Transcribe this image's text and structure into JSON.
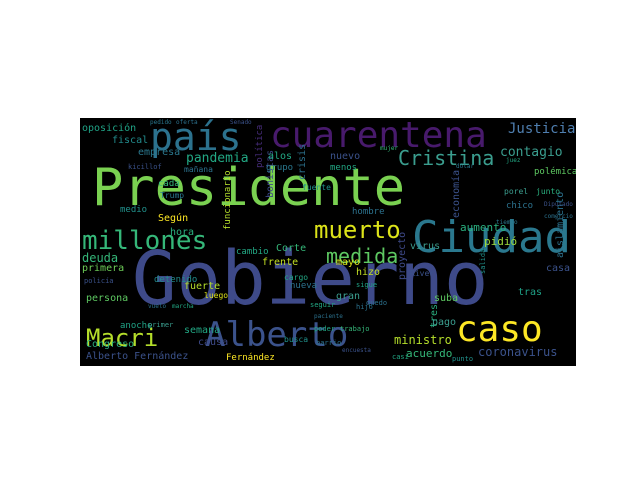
{
  "wordcloud": {
    "words": [
      {
        "text": "Presidente",
        "color": "#7ad151"
      },
      {
        "text": "Gobierno",
        "color": "#3e4a89"
      },
      {
        "text": "cuarentena",
        "color": "#481a6c"
      },
      {
        "text": "país",
        "color": "#2c728e"
      },
      {
        "text": "Alberto",
        "color": "#3b528b"
      },
      {
        "text": "Ciudad",
        "color": "#2a788e"
      },
      {
        "text": "caso",
        "color": "#fde725"
      },
      {
        "text": "Macri",
        "color": "#b5de2b"
      },
      {
        "text": "millones",
        "color": "#35b779"
      },
      {
        "text": "muerto",
        "color": "#dce319"
      },
      {
        "text": "medida",
        "color": "#5ec962"
      },
      {
        "text": "Cristina",
        "color": "#3b9e8f"
      },
      {
        "text": "Justicia",
        "color": "#4f7fb0"
      },
      {
        "text": "contagio",
        "color": "#3b9e8f"
      },
      {
        "text": "oposición",
        "color": "#20a386"
      },
      {
        "text": "empresa",
        "color": "#2a788e"
      },
      {
        "text": "fiscal",
        "color": "#228c8d"
      },
      {
        "text": "pandemia",
        "color": "#22a884"
      },
      {
        "text": "aumento",
        "color": "#2ab07f"
      },
      {
        "text": "pidió",
        "color": "#9fda3a"
      },
      {
        "text": "deuda",
        "color": "#35b779"
      },
      {
        "text": "primera",
        "color": "#6ece58"
      },
      {
        "text": "persona",
        "color": "#5ec962"
      },
      {
        "text": "Congreso",
        "color": "#2ab07f"
      },
      {
        "text": "Alberto Fernández",
        "color": "#3b528b"
      },
      {
        "text": "coronavirus",
        "color": "#3b528b"
      },
      {
        "text": "ministro",
        "color": "#b5de2b"
      },
      {
        "text": "acuerdo",
        "color": "#35b779"
      },
      {
        "text": "aislamiento",
        "color": "#2c728e"
      },
      {
        "text": "semana",
        "color": "#22a884"
      },
      {
        "text": "causa",
        "color": "#3e4a89"
      },
      {
        "text": "anoche",
        "color": "#20a386"
      },
      {
        "text": "hora",
        "color": "#2ab07f"
      },
      {
        "text": "Según",
        "color": "#fde725"
      },
      {
        "text": "funcionario",
        "color": "#b5de2b"
      },
      {
        "text": "medio",
        "color": "#21918c"
      },
      {
        "text": "frente",
        "color": "#c2df23"
      },
      {
        "text": "fuerte",
        "color": "#b5de2b"
      },
      {
        "text": "detenido",
        "color": "#228c8d"
      },
      {
        "text": "cambio",
        "color": "#22a884"
      },
      {
        "text": "Corte",
        "color": "#35b779"
      },
      {
        "text": "crisis",
        "color": "#2c728e"
      },
      {
        "text": "bonistas",
        "color": "#3e4a89"
      },
      {
        "text": "política",
        "color": "#472d7b"
      },
      {
        "text": "alos",
        "color": "#22a884"
      },
      {
        "text": "nuevo",
        "color": "#3b528b"
      },
      {
        "text": "menos",
        "color": "#22a884"
      },
      {
        "text": "grupo",
        "color": "#2a788e"
      },
      {
        "text": "fuente",
        "color": "#21918c"
      },
      {
        "text": "nueva",
        "color": "#2c728e"
      },
      {
        "text": "hizo",
        "color": "#c2df23"
      },
      {
        "text": "mayo",
        "color": "#dce319"
      },
      {
        "text": "gran",
        "color": "#3b9e8f"
      },
      {
        "text": "proyecto",
        "color": "#3e4a89"
      },
      {
        "text": "economía",
        "color": "#3b528b"
      },
      {
        "text": "tres",
        "color": "#2ab07f"
      },
      {
        "text": "suba",
        "color": "#5ec962"
      },
      {
        "text": "pago",
        "color": "#3b9e8f"
      },
      {
        "text": "tras",
        "color": "#1fa187"
      },
      {
        "text": "casa",
        "color": "#3b528b"
      },
      {
        "text": "hombre",
        "color": "#2c728e"
      },
      {
        "text": "virus",
        "color": "#3b9e8f"
      },
      {
        "text": "River",
        "color": "#3b528b"
      },
      {
        "text": "cada",
        "color": "#35b779"
      },
      {
        "text": "mañana",
        "color": "#2c728e"
      },
      {
        "text": "junto",
        "color": "#2ab07f"
      },
      {
        "text": "polémica",
        "color": "#5ec962"
      },
      {
        "text": "chico",
        "color": "#2c728e"
      },
      {
        "text": "porel",
        "color": "#3b9e8f"
      },
      {
        "text": "Fernández",
        "color": "#fde725"
      },
      {
        "text": "busca",
        "color": "#21918c"
      },
      {
        "text": "barrio",
        "color": "#2c728e"
      },
      {
        "text": "punto",
        "color": "#21918c"
      },
      {
        "text": "luego",
        "color": "#dce319"
      },
      {
        "text": "cargo",
        "color": "#22a884"
      },
      {
        "text": "Trump",
        "color": "#2a788e"
      },
      {
        "text": "sigue",
        "color": "#20a386"
      },
      {
        "text": "seguir",
        "color": "#22a884"
      },
      {
        "text": "hijo",
        "color": "#2c728e"
      },
      {
        "text": "primer",
        "color": "#3b9e8f"
      },
      {
        "text": "poder",
        "color": "#22a884"
      },
      {
        "text": "trabajo",
        "color": "#35b779"
      },
      {
        "text": "quedo",
        "color": "#2c728e"
      },
      {
        "text": "kicillof",
        "color": "#3b528b"
      },
      {
        "text": "pedido",
        "color": "#2a788e"
      },
      {
        "text": "oferta",
        "color": "#2c728e"
      },
      {
        "text": "Senado",
        "color": "#3b528b"
      },
      {
        "text": "mujer",
        "color": "#35b779"
      },
      {
        "text": "dólar",
        "color": "#2a788e"
      },
      {
        "text": "juez",
        "color": "#22a884"
      },
      {
        "text": "vuelo",
        "color": "#2c728e"
      },
      {
        "text": "marcha",
        "color": "#22a884"
      },
      {
        "text": "Diputado",
        "color": "#3b528b"
      },
      {
        "text": "comercio",
        "color": "#2c728e"
      },
      {
        "text": "policía",
        "color": "#3b528b"
      },
      {
        "text": "tiempo",
        "color": "#2a788e"
      },
      {
        "text": "casi",
        "color": "#22a884"
      },
      {
        "text": "encuesta",
        "color": "#3b528b"
      },
      {
        "text": "paciente",
        "color": "#2c728e"
      },
      {
        "text": "salida",
        "color": "#21918c"
      }
    ]
  }
}
